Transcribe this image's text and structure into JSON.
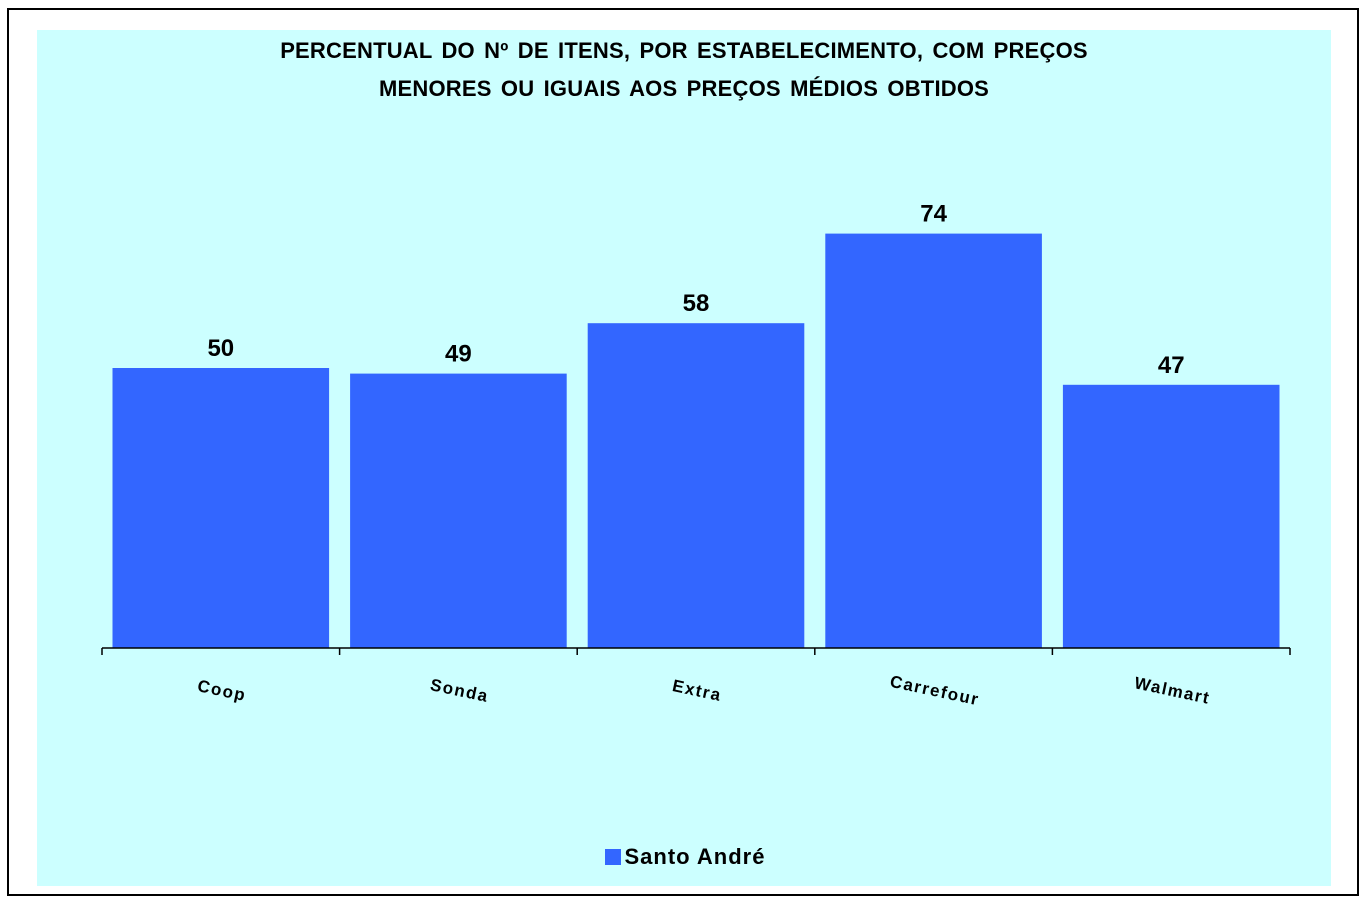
{
  "colors": {
    "plot_background": "#ccffff",
    "bar": "#3366ff",
    "axis": "#000000",
    "text": "#000000"
  },
  "chart_data": {
    "type": "bar",
    "title_lines": [
      "PERCENTUAL DO Nº DE ITENS, POR ESTABELECIMENTO, COM  PREÇOS",
      "MENORES  OU  IGUAIS  AOS  PREÇOS  MÉDIOS  OBTIDOS"
    ],
    "categories": [
      "Coop",
      "Sonda",
      "Extra",
      "Carrefour",
      "Walmart"
    ],
    "series": [
      {
        "name": "Santo André",
        "values": [
          50,
          49,
          58,
          74,
          47
        ]
      }
    ],
    "ylim": [
      0,
      100
    ],
    "grid": false,
    "data_labels": true,
    "legend_position": "bottom"
  }
}
